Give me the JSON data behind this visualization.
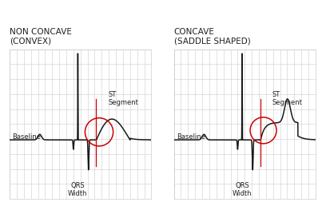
{
  "title_left": "NON CONCAVE\n(CONVEX)",
  "title_right": "CONCAVE\n(SADDLE SHAPED)",
  "label_baseline": "Baseline",
  "label_st": "ST\nSegment",
  "label_qrs": "QRS\nWidth",
  "grid_color": "#cccccc",
  "line_color": "#1a1a1a",
  "circle_color": "#cc0000",
  "background": "#ffffff",
  "text_color": "#222222",
  "title_fontsize": 7.5,
  "label_fontsize": 6.0
}
